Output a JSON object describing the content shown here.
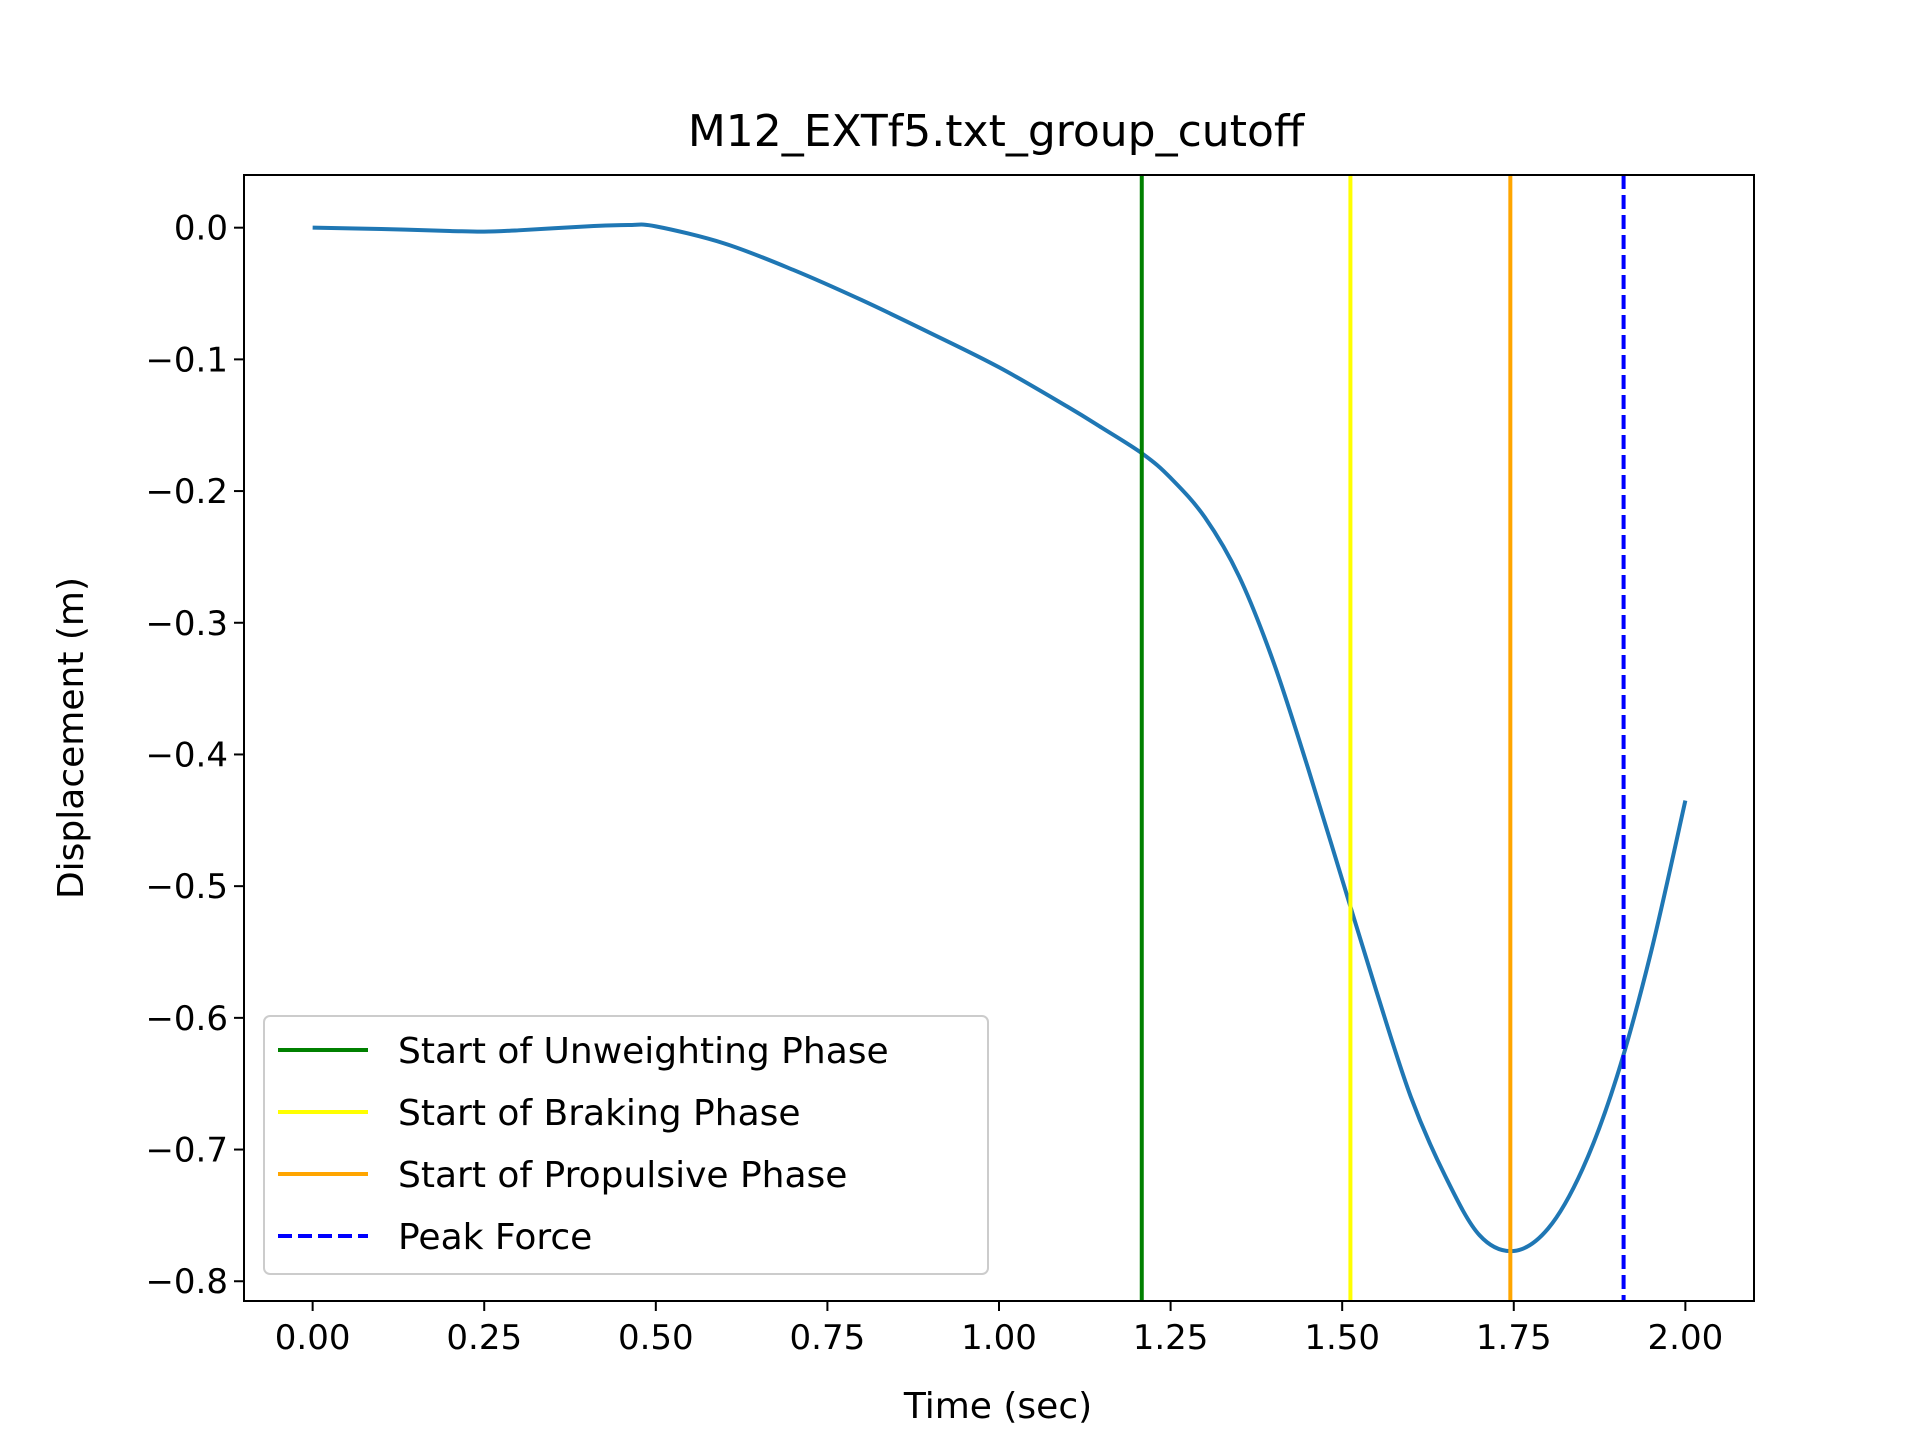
{
  "chart_data": {
    "type": "line",
    "title": "M12_EXTf5.txt_group_cutoff",
    "xlabel": "Time (sec)",
    "ylabel": "Displacement (m)",
    "xlim": [
      -0.1,
      2.1
    ],
    "ylim": [
      -0.815,
      0.04
    ],
    "xticks": [
      0.0,
      0.25,
      0.5,
      0.75,
      1.0,
      1.25,
      1.5,
      1.75,
      2.0
    ],
    "xtick_labels": [
      "0.00",
      "0.25",
      "0.50",
      "0.75",
      "1.00",
      "1.25",
      "1.50",
      "1.75",
      "2.00"
    ],
    "yticks": [
      0.0,
      -0.1,
      -0.2,
      -0.3,
      -0.4,
      -0.5,
      -0.6,
      -0.7,
      -0.8
    ],
    "ytick_labels": [
      "0.0",
      "−0.1",
      "−0.2",
      "−0.3",
      "−0.4",
      "−0.5",
      "−0.6",
      "−0.7",
      "−0.8"
    ],
    "grid": false,
    "legend_position": "lower-left",
    "series": [
      {
        "color": "#1f77b4",
        "x": [
          0.0,
          0.1,
          0.2,
          0.25,
          0.3,
          0.4,
          0.46,
          0.5,
          0.6,
          0.7,
          0.8,
          0.9,
          1.0,
          1.1,
          1.15,
          1.21,
          1.25,
          1.3,
          1.35,
          1.4,
          1.45,
          1.5,
          1.55,
          1.6,
          1.65,
          1.7,
          1.75,
          1.8,
          1.85,
          1.9,
          1.95,
          2.0
        ],
        "y": [
          0.0,
          -0.001,
          -0.0025,
          -0.003,
          -0.002,
          0.001,
          0.002,
          0.001,
          -0.012,
          -0.032,
          -0.055,
          -0.08,
          -0.106,
          -0.136,
          -0.152,
          -0.172,
          -0.19,
          -0.22,
          -0.265,
          -0.33,
          -0.41,
          -0.495,
          -0.58,
          -0.66,
          -0.72,
          -0.765,
          -0.777,
          -0.76,
          -0.715,
          -0.645,
          -0.55,
          -0.435
        ]
      }
    ],
    "vlines": [
      {
        "name": "Start of Unweighting Phase",
        "x": 1.208,
        "color": "#008000",
        "style": "solid"
      },
      {
        "name": "Start of Braking Phase",
        "x": 1.512,
        "color": "#ffff00",
        "style": "solid"
      },
      {
        "name": "Start of Propulsive Phase",
        "x": 1.745,
        "color": "#ffa500",
        "style": "solid"
      },
      {
        "name": "Peak Force",
        "x": 1.91,
        "color": "#0000ff",
        "style": "dashed"
      }
    ]
  }
}
